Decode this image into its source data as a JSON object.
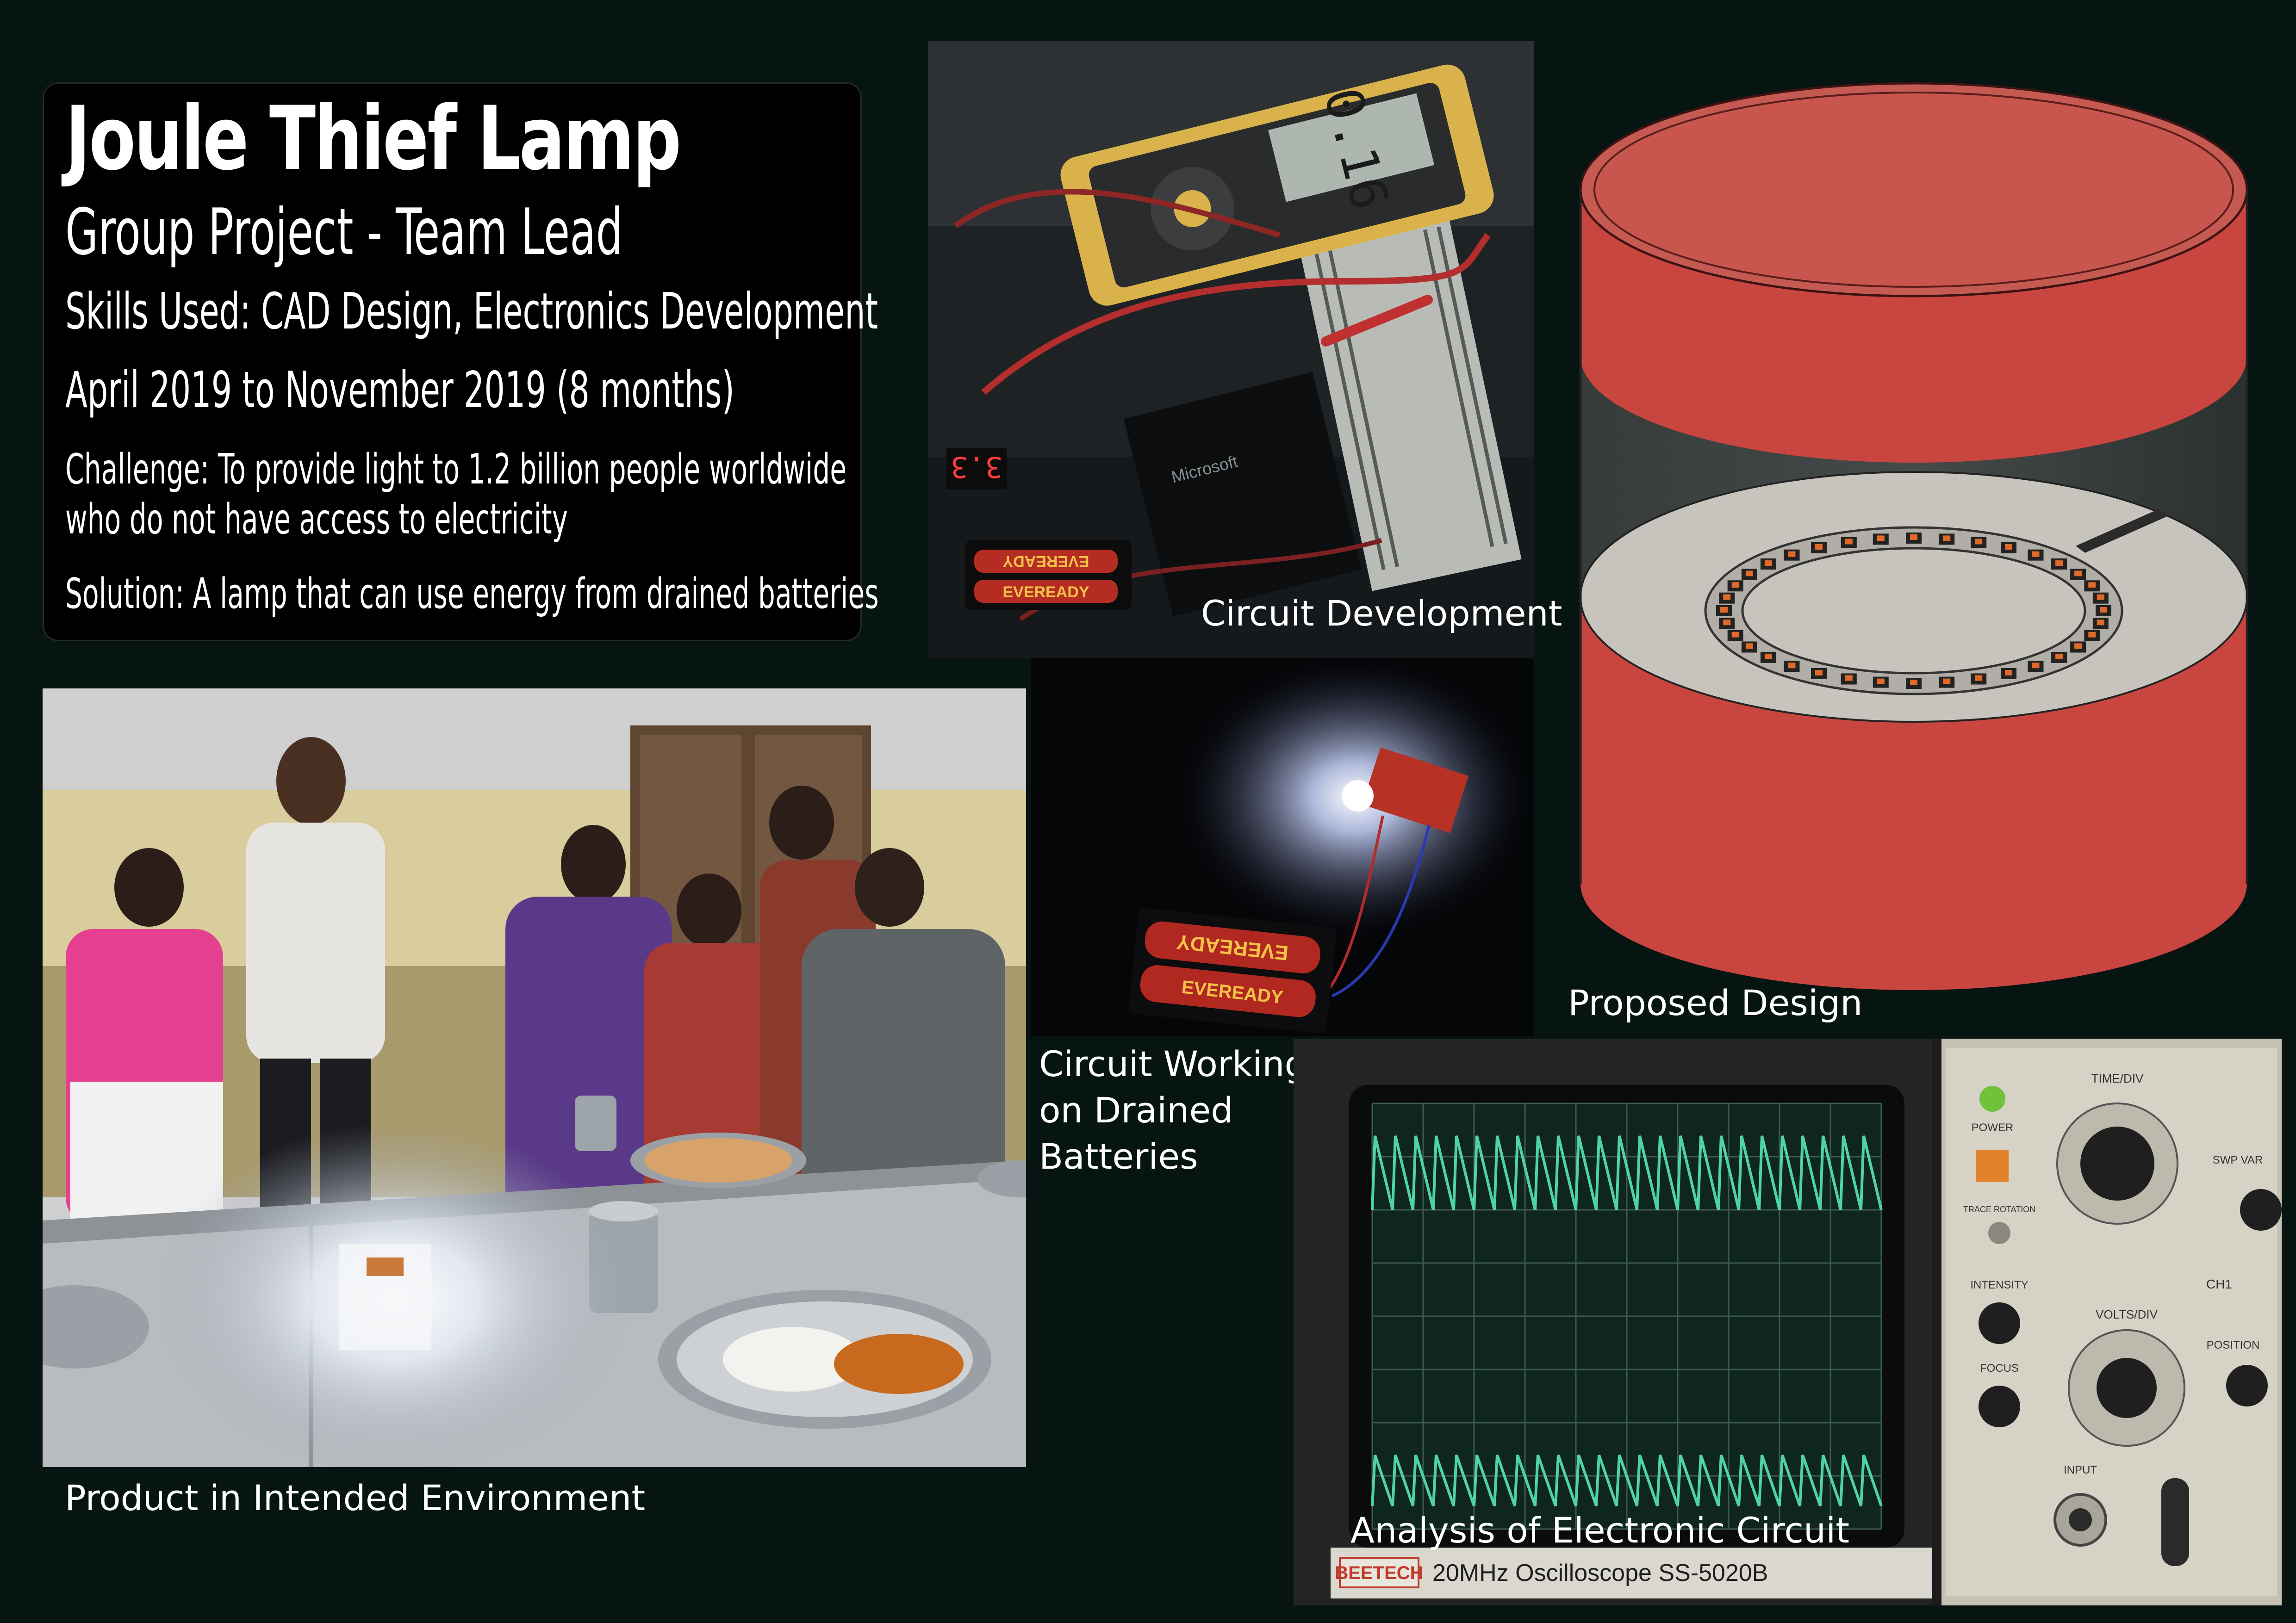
{
  "info": {
    "title": "Joule Thief Lamp",
    "subtitle": "Group Project - Team Lead",
    "skills": "Skills Used: CAD Design, Electronics Development",
    "dates": "April 2019 to November 2019 (8 months)",
    "challenge": "Challenge: To provide light to 1.2 billion people worldwide who do not have access to electricity",
    "solution": "Solution: A lamp that can use energy from drained batteries"
  },
  "captions": {
    "circuit_development": "Circuit Development",
    "proposed_design": "Proposed Design",
    "circuit_working_1": "Circuit Working",
    "circuit_working_2": "on Drained",
    "circuit_working_3": "Batteries",
    "product_environment": "Product in Intended Environment",
    "analysis": "Analysis of Electronic Circuit"
  },
  "photo_text": {
    "multimeter_reading": "0.16",
    "voltmeter_reading": "3.3",
    "battery_brand": "EVEREADY",
    "laptop_brand": "Microsoft",
    "scope_brand": "BEETECH",
    "scope_model": "20MHz Oscilloscope SS-5020B",
    "power_label": "POWER",
    "time_div_label": "TIME/DIV",
    "intensity_label": "INTENSITY",
    "focus_label": "FOCUS",
    "volts_div_label": "VOLTS/DIV",
    "position_label": "POSITION",
    "trace_rotation_label": "TRACE ROTATION",
    "input_label": "INPUT",
    "channel_label": "CH1",
    "swp_var_label": "SWP VAR"
  },
  "colors": {
    "background": "#071512",
    "lamp_red": "#c9453f",
    "scope_trace": "#4fd3a6"
  }
}
